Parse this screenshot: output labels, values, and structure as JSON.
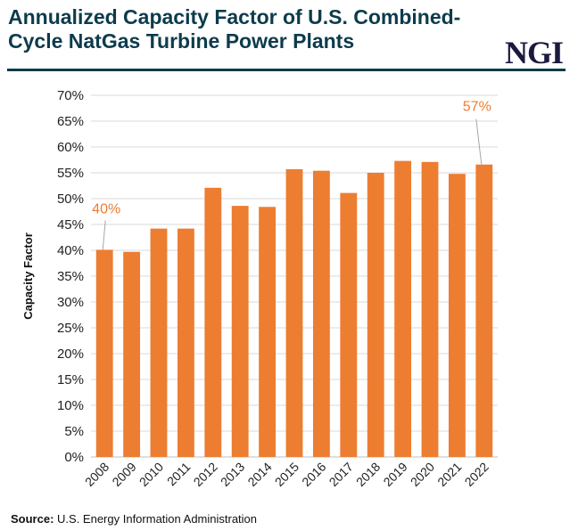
{
  "title": "Annualized Capacity Factor of U.S. Combined-Cycle NatGas Turbine Power Plants",
  "logo": "NGI",
  "source_label": "Source:",
  "source_text": "U.S. Energy Information Administration",
  "colors": {
    "bar": "#ED7D31",
    "title": "#0D3B4C",
    "grid": "#D9D9D9"
  },
  "chart_data": {
    "type": "bar",
    "title": "Annualized Capacity Factor of U.S. Combined-Cycle NatGas Turbine Power Plants",
    "xlabel": "",
    "ylabel": "Capacity Factor",
    "ylim": [
      0,
      70
    ],
    "yticks": [
      "0%",
      "5%",
      "10%",
      "15%",
      "20%",
      "25%",
      "30%",
      "35%",
      "40%",
      "45%",
      "50%",
      "55%",
      "60%",
      "65%",
      "70%"
    ],
    "grid": true,
    "categories": [
      "2008",
      "2009",
      "2010",
      "2011",
      "2012",
      "2013",
      "2014",
      "2015",
      "2016",
      "2017",
      "2018",
      "2019",
      "2020",
      "2021",
      "2022"
    ],
    "values": [
      40.1,
      39.7,
      44.2,
      44.2,
      52.1,
      48.6,
      48.4,
      55.7,
      55.4,
      51.1,
      55.0,
      57.3,
      57.1,
      54.8,
      56.6
    ],
    "annotations": [
      {
        "category": "2008",
        "text": "40%"
      },
      {
        "category": "2022",
        "text": "57%"
      }
    ]
  }
}
